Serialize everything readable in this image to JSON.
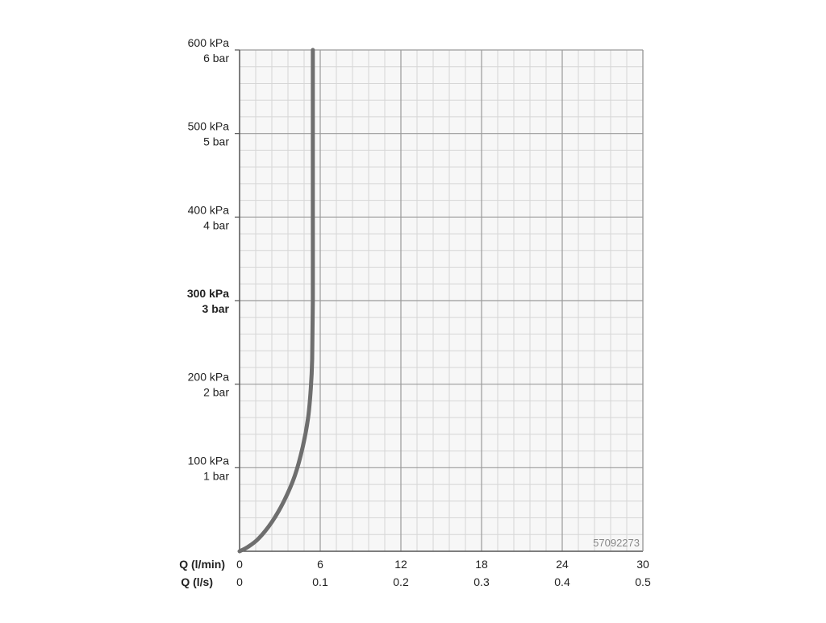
{
  "chart_data": {
    "type": "line",
    "y_axis": {
      "ylim": [
        0,
        600
      ],
      "ticks": [
        {
          "value": 100,
          "kpa": "100 kPa",
          "bar": "1 bar",
          "bold": false
        },
        {
          "value": 200,
          "kpa": "200 kPa",
          "bar": "2 bar",
          "bold": false
        },
        {
          "value": 300,
          "kpa": "300 kPa",
          "bar": "3 bar",
          "bold": true
        },
        {
          "value": 400,
          "kpa": "400 kPa",
          "bar": "4 bar",
          "bold": false
        },
        {
          "value": 500,
          "kpa": "500 kPa",
          "bar": "5 bar",
          "bold": false
        },
        {
          "value": 600,
          "kpa": "600 kPa",
          "bar": "6 bar",
          "bold": false
        }
      ]
    },
    "x_axis": {
      "xlim": [
        0,
        30
      ],
      "title_lmin": "Q (l/min)",
      "title_ls": "Q (l/s)",
      "ticks": [
        {
          "value": 0,
          "lmin": "0",
          "ls": "0"
        },
        {
          "value": 6,
          "lmin": "6",
          "ls": "0.1"
        },
        {
          "value": 12,
          "lmin": "12",
          "ls": "0.2"
        },
        {
          "value": 18,
          "lmin": "18",
          "ls": "0.3"
        },
        {
          "value": 24,
          "lmin": "24",
          "ls": "0.4"
        },
        {
          "value": 30,
          "lmin": "30",
          "ls": "0.5"
        }
      ]
    },
    "grid": true,
    "series": [
      {
        "color": "#6e6e6e",
        "points": [
          {
            "x": 0,
            "y": 0
          },
          {
            "x": 0.6,
            "y": 5
          },
          {
            "x": 1.4,
            "y": 15
          },
          {
            "x": 2.4,
            "y": 35
          },
          {
            "x": 3.3,
            "y": 60
          },
          {
            "x": 4.1,
            "y": 90
          },
          {
            "x": 4.7,
            "y": 125
          },
          {
            "x": 5.1,
            "y": 160
          },
          {
            "x": 5.3,
            "y": 195
          },
          {
            "x": 5.4,
            "y": 230
          },
          {
            "x": 5.45,
            "y": 300
          },
          {
            "x": 5.45,
            "y": 400
          },
          {
            "x": 5.45,
            "y": 500
          },
          {
            "x": 5.45,
            "y": 600
          }
        ]
      }
    ],
    "annotation": "57092273",
    "colors": {
      "curve": "#6e6e6e",
      "major_grid": "#9a9a9a",
      "minor_grid": "#d6d6d6",
      "plot_bg": "#f7f7f7"
    }
  }
}
